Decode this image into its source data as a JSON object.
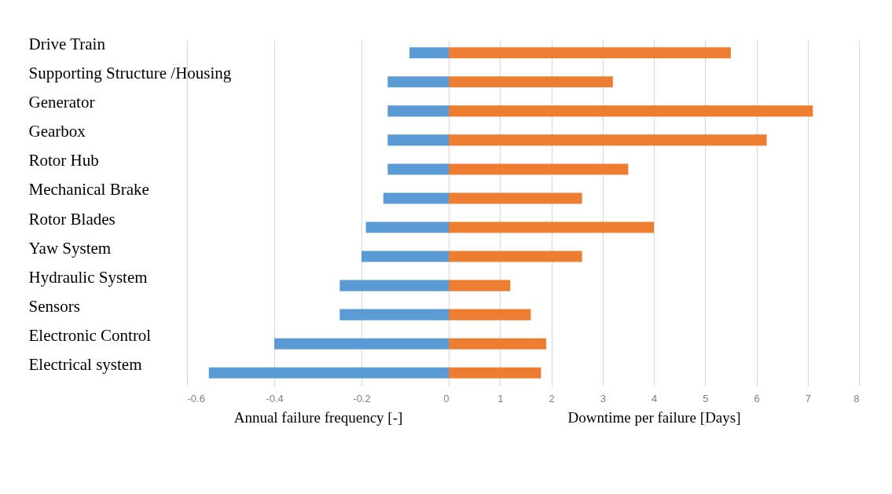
{
  "chart_data": [
    {
      "type": "bar",
      "orientation": "horizontal",
      "categories": [
        "Drive Train",
        "Supporting Structure /Housing",
        "Generator",
        "Gearbox",
        "Rotor Hub",
        "Mechanical Brake",
        "Rotor Blades",
        "Yaw System",
        "Hydraulic System",
        "Sensors",
        "Electronic Control",
        "Electrical system"
      ],
      "values": [
        -0.09,
        -0.14,
        -0.14,
        -0.14,
        -0.14,
        -0.15,
        -0.19,
        -0.2,
        -0.25,
        -0.25,
        -0.4,
        -0.55
      ],
      "color": "#5b9bd5",
      "xlim": [
        -0.6,
        0
      ],
      "xticks": [
        -0.6,
        -0.4,
        -0.2,
        0
      ],
      "xlabel": "Annual failure frequency [-]",
      "grid": "x"
    },
    {
      "type": "bar",
      "orientation": "horizontal",
      "categories": [
        null,
        null,
        null,
        null,
        null,
        null,
        null,
        null,
        null,
        null,
        null,
        null
      ],
      "values": [
        5.5,
        3.2,
        7.1,
        6.2,
        3.5,
        2.6,
        4,
        2.6,
        1.2,
        1.6,
        1.9,
        1.8
      ],
      "color": "#ed7d31",
      "xlim": [
        0,
        8
      ],
      "xticks": [
        1,
        2,
        3,
        4,
        5,
        6,
        7,
        8
      ],
      "xlabel": "Downtime per failure [Days]",
      "grid": "x",
      "tick_labels": "x"
    }
  ]
}
